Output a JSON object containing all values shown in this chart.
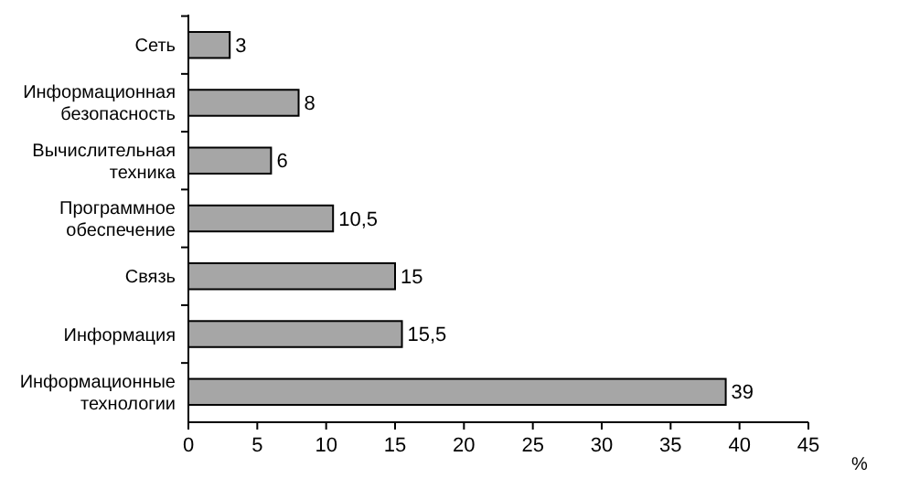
{
  "chart_data": {
    "type": "bar",
    "orientation": "horizontal",
    "categories": [
      "Сеть",
      "Информационная безопасность",
      "Вычислительная техника",
      "Программное обеспечение",
      "Связь",
      "Информация",
      "Информационные технологии"
    ],
    "values": [
      3,
      8,
      6,
      10.5,
      15,
      15.5,
      39
    ],
    "value_labels": [
      "3",
      "8",
      "6",
      "10,5",
      "15",
      "15,5",
      "39"
    ],
    "color": "#a6a6a6",
    "xlim": [
      0,
      45
    ],
    "xticks": [
      0,
      5,
      10,
      15,
      20,
      25,
      30,
      35,
      40,
      45
    ],
    "xlabel": "%",
    "grid": false
  }
}
